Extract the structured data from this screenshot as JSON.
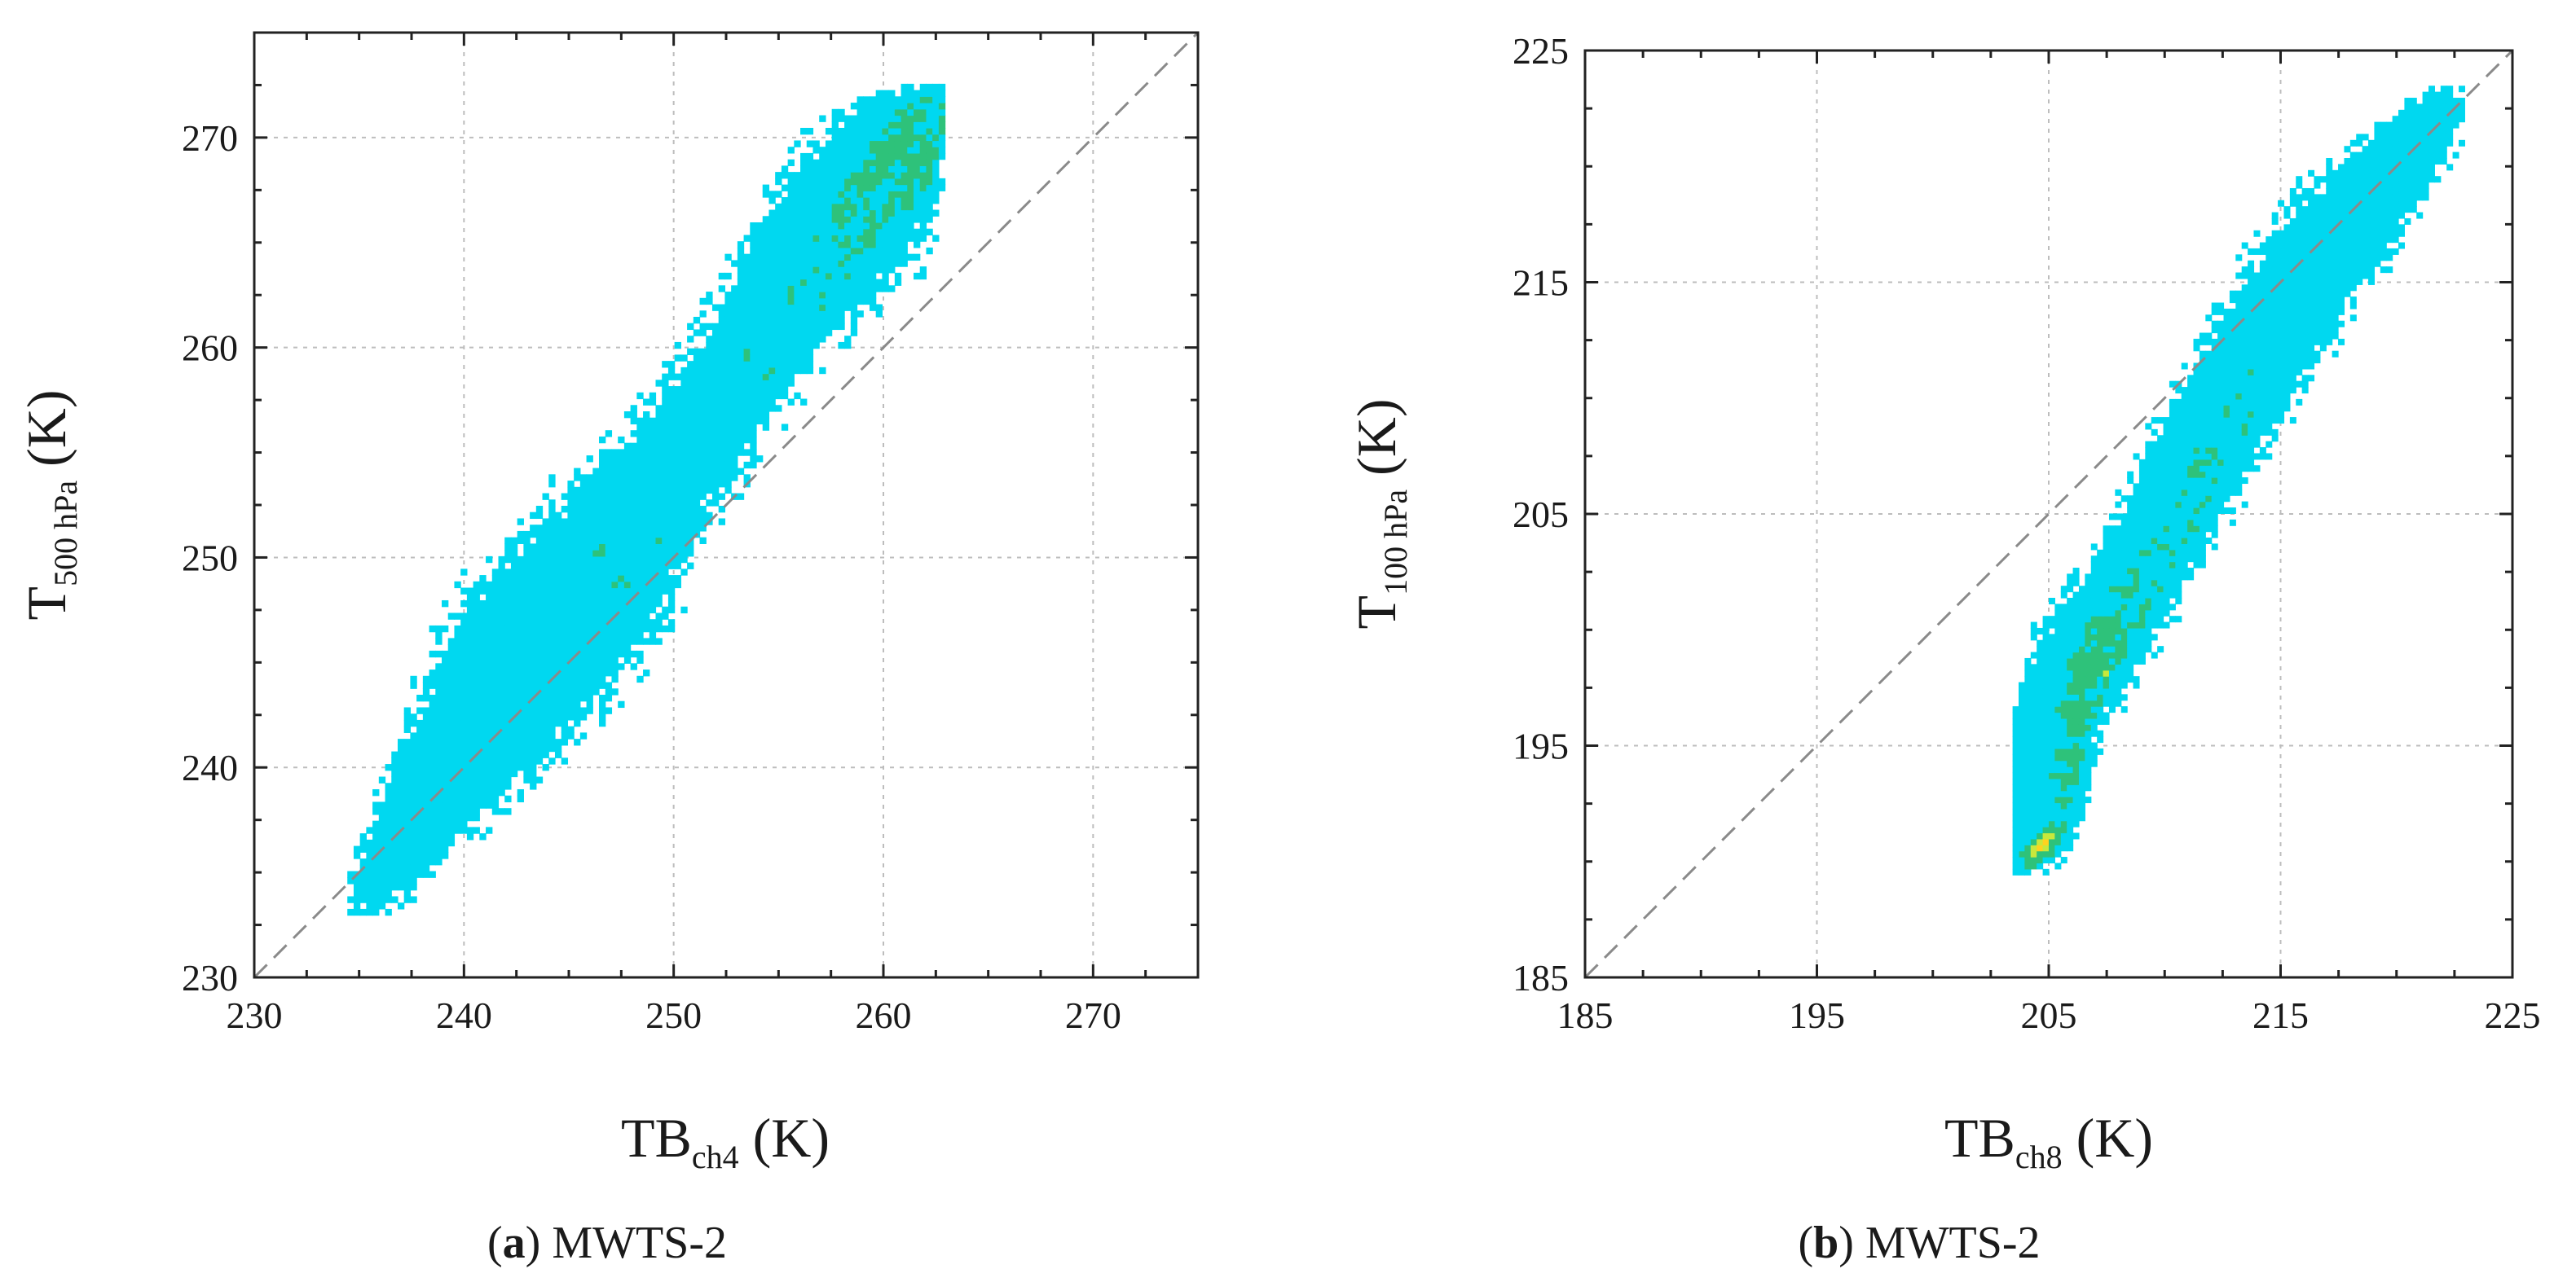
{
  "chart_data": [
    {
      "type": "heatmap",
      "title": "",
      "caption_letter": "a",
      "caption_text": "MWTS-2",
      "xlabel_main": "TB",
      "xlabel_sub": "ch4",
      "xlabel_unit": "(K)",
      "ylabel_main": "T",
      "ylabel_sub": "500 hPa",
      "ylabel_unit": "(K)",
      "xlim": [
        230,
        275
      ],
      "ylim": [
        230,
        275
      ],
      "xticks": [
        230,
        240,
        250,
        260,
        270
      ],
      "yticks": [
        230,
        240,
        250,
        260,
        270
      ],
      "xtick_labels": [
        "230",
        "240",
        "250",
        "260",
        "270"
      ],
      "ytick_labels": [
        "230",
        "240",
        "250",
        "260",
        "270"
      ],
      "grid": true,
      "reference_line": "1:1 dashed diagonal",
      "colormap": [
        "#00d8f0",
        "#2ec27a",
        "#c8e83c",
        "#ffd21f",
        "#f07c1e",
        "#d6141e"
      ],
      "ridge": [
        {
          "x": 236.0,
          "y": 234.5,
          "w": 0.8,
          "d": 0.1
        },
        {
          "x": 238.0,
          "y": 237.5,
          "w": 1.2,
          "d": 0.2
        },
        {
          "x": 240.0,
          "y": 240.8,
          "w": 1.6,
          "d": 0.28
        },
        {
          "x": 242.5,
          "y": 244.5,
          "w": 2.0,
          "d": 0.45
        },
        {
          "x": 244.0,
          "y": 246.5,
          "w": 2.1,
          "d": 0.62
        },
        {
          "x": 246.5,
          "y": 249.5,
          "w": 2.0,
          "d": 0.55
        },
        {
          "x": 249.0,
          "y": 253.0,
          "w": 1.6,
          "d": 0.5
        },
        {
          "x": 252.0,
          "y": 257.0,
          "w": 1.4,
          "d": 0.52
        },
        {
          "x": 255.0,
          "y": 261.5,
          "w": 1.5,
          "d": 0.62
        },
        {
          "x": 257.0,
          "y": 264.5,
          "w": 1.7,
          "d": 0.85
        },
        {
          "x": 259.0,
          "y": 267.0,
          "w": 1.9,
          "d": 1.0
        },
        {
          "x": 260.5,
          "y": 269.5,
          "w": 1.4,
          "d": 0.8
        },
        {
          "x": 261.5,
          "y": 271.0,
          "w": 0.8,
          "d": 0.4
        }
      ]
    },
    {
      "type": "heatmap",
      "title": "",
      "caption_letter": "b",
      "caption_text": "MWTS-2",
      "xlabel_main": "TB",
      "xlabel_sub": "ch8",
      "xlabel_unit": "(K)",
      "ylabel_main": "T",
      "ylabel_sub": "100 hPa",
      "ylabel_unit": "(K)",
      "xlim": [
        185,
        225
      ],
      "ylim": [
        185,
        225
      ],
      "xticks": [
        185,
        195,
        205,
        215,
        225
      ],
      "yticks": [
        185,
        195,
        205,
        215,
        225
      ],
      "xtick_labels": [
        "185",
        "195",
        "205",
        "215",
        "225"
      ],
      "ytick_labels": [
        "185",
        "195",
        "205",
        "215",
        "225"
      ],
      "grid": true,
      "reference_line": "1:1 dashed diagonal",
      "colormap": [
        "#00d8f0",
        "#2ec27a",
        "#c8e83c",
        "#ffd21f",
        "#f07c1e",
        "#d6141e"
      ],
      "ridge": [
        {
          "x": 204.8,
          "y": 190.8,
          "w": 0.7,
          "d": 0.45
        },
        {
          "x": 205.0,
          "y": 193.0,
          "w": 0.9,
          "d": 0.85
        },
        {
          "x": 205.3,
          "y": 195.5,
          "w": 1.0,
          "d": 1.0
        },
        {
          "x": 206.0,
          "y": 197.8,
          "w": 1.1,
          "d": 0.95
        },
        {
          "x": 207.3,
          "y": 199.8,
          "w": 1.2,
          "d": 0.75
        },
        {
          "x": 208.8,
          "y": 202.2,
          "w": 1.1,
          "d": 0.62
        },
        {
          "x": 210.0,
          "y": 204.5,
          "w": 1.1,
          "d": 0.68
        },
        {
          "x": 211.5,
          "y": 207.5,
          "w": 1.2,
          "d": 0.58
        },
        {
          "x": 213.0,
          "y": 210.0,
          "w": 1.2,
          "d": 0.5
        },
        {
          "x": 214.5,
          "y": 212.5,
          "w": 1.2,
          "d": 0.4
        },
        {
          "x": 216.0,
          "y": 215.0,
          "w": 1.3,
          "d": 0.34
        },
        {
          "x": 217.8,
          "y": 217.5,
          "w": 1.2,
          "d": 0.2
        },
        {
          "x": 219.5,
          "y": 219.5,
          "w": 1.0,
          "d": 0.12
        },
        {
          "x": 221.5,
          "y": 222.0,
          "w": 0.8,
          "d": 0.08
        }
      ]
    }
  ]
}
